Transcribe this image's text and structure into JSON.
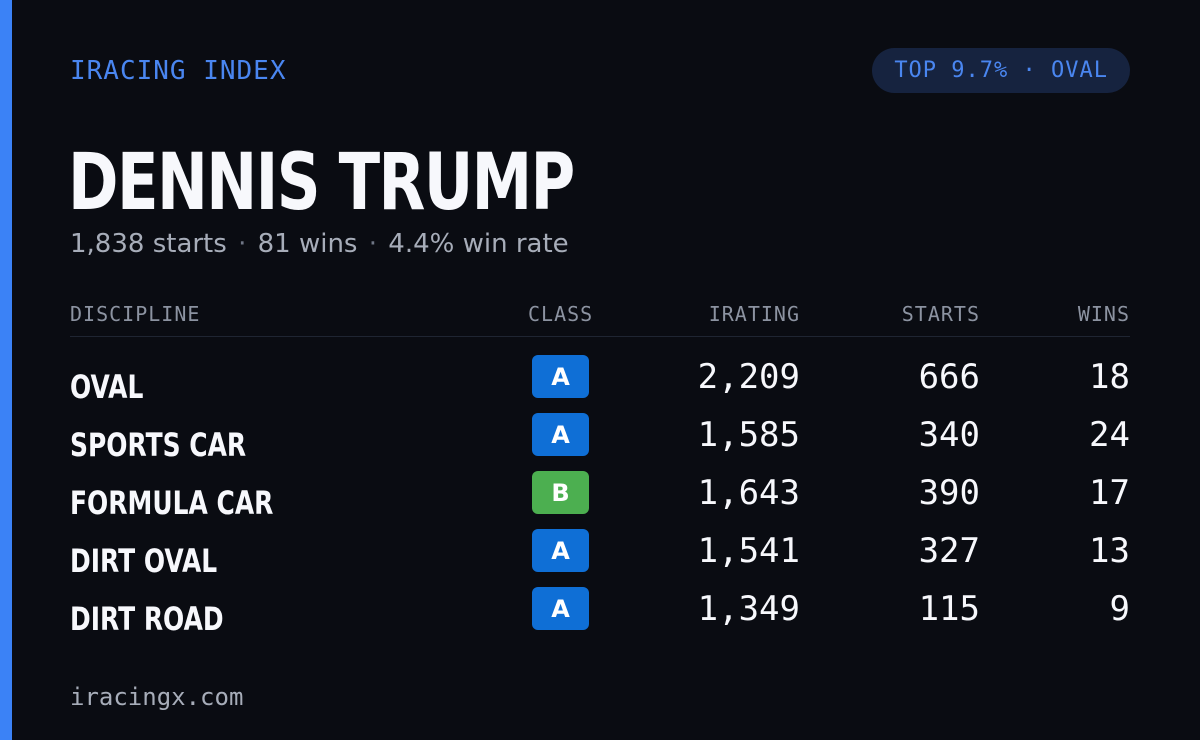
{
  "brand": "IRACING INDEX",
  "rank_badge": "TOP 9.7% · OVAL",
  "driver": {
    "name": "DENNIS TRUMP",
    "starts": "1,838 starts",
    "wins": "81 wins",
    "win_rate": "4.4% win rate",
    "separator": "·"
  },
  "table": {
    "headers": {
      "discipline": "DISCIPLINE",
      "class": "CLASS",
      "irating": "IRATING",
      "starts": "STARTS",
      "wins": "WINS"
    },
    "rows": [
      {
        "discipline": "OVAL",
        "class": "A",
        "class_color": "#0f6fd6",
        "irating": "2,209",
        "starts": "666",
        "wins": "18"
      },
      {
        "discipline": "SPORTS CAR",
        "class": "A",
        "class_color": "#0f6fd6",
        "irating": "1,585",
        "starts": "340",
        "wins": "24"
      },
      {
        "discipline": "FORMULA CAR",
        "class": "B",
        "class_color": "#4caf50",
        "irating": "1,643",
        "starts": "390",
        "wins": "17"
      },
      {
        "discipline": "DIRT OVAL",
        "class": "A",
        "class_color": "#0f6fd6",
        "irating": "1,541",
        "starts": "327",
        "wins": "13"
      },
      {
        "discipline": "DIRT ROAD",
        "class": "A",
        "class_color": "#0f6fd6",
        "irating": "1,349",
        "starts": "115",
        "wins": "9"
      }
    ]
  },
  "footer": "iracingx.com",
  "colors": {
    "accent": "#3b82f6",
    "background": "#0a0c12",
    "class_a": "#0f6fd6",
    "class_b": "#4caf50"
  }
}
